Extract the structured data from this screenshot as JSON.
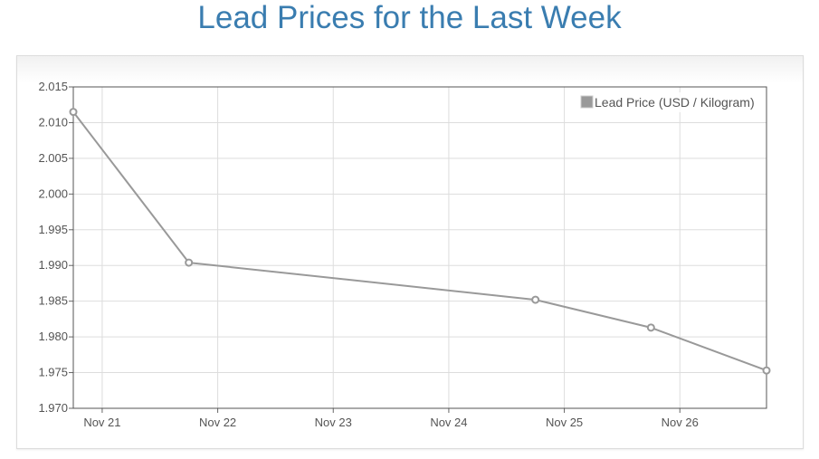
{
  "page": {
    "title": "Lead Prices for the Last Week"
  },
  "chart_data": {
    "type": "line",
    "title": "Lead Prices for the Last Week",
    "xlabel": "",
    "ylabel": "",
    "x_tick_labels": [
      "Nov 21",
      "Nov 22",
      "Nov 23",
      "Nov 24",
      "Nov 25",
      "Nov 26"
    ],
    "y_tick_labels": [
      "2.015",
      "2.010",
      "2.005",
      "2.000",
      "1.995",
      "1.990",
      "1.985",
      "1.980",
      "1.975",
      "1.970"
    ],
    "ylim": [
      1.97,
      2.015
    ],
    "xlim": [
      "2017-11-20T18:00",
      "2017-11-26T18:00"
    ],
    "grid": true,
    "legend_position": "top-right",
    "series": [
      {
        "name": "Lead Price (USD / Kilogram)",
        "color": "#999999",
        "points": [
          {
            "x": "2017-11-20T18:00",
            "y": 2.0115
          },
          {
            "x": "2017-11-21T18:00",
            "y": 1.9904
          },
          {
            "x": "2017-11-24T18:00",
            "y": 1.9852
          },
          {
            "x": "2017-11-25T18:00",
            "y": 1.9813
          },
          {
            "x": "2017-11-26T18:00",
            "y": 1.9753
          }
        ]
      }
    ]
  }
}
